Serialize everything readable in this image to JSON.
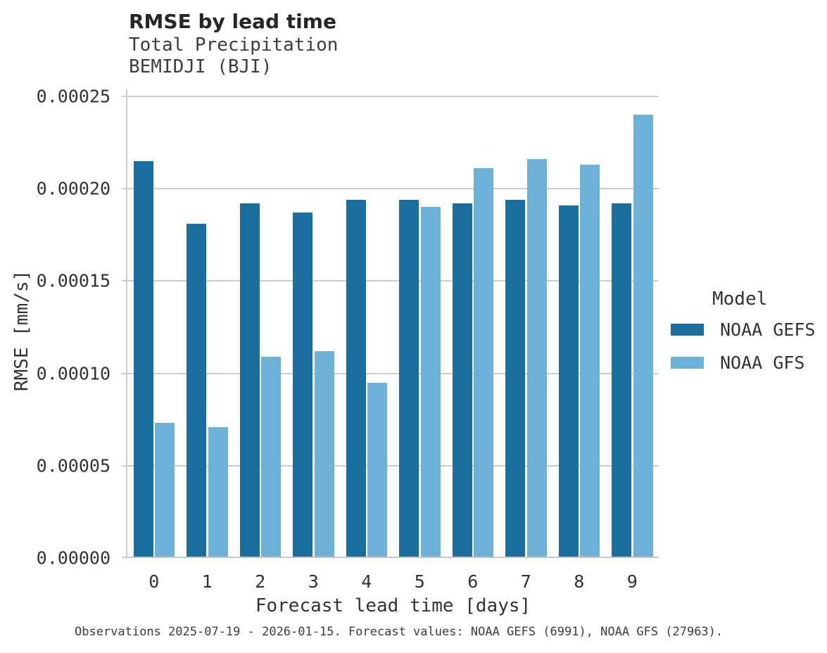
{
  "header": {
    "title": "RMSE by lead time",
    "subtitle_variable": "Total Precipitation",
    "subtitle_station": "BEMIDJI (BJI)"
  },
  "chart_data": {
    "type": "bar",
    "title": "RMSE by lead time",
    "subtitle": [
      "Total Precipitation",
      "BEMIDJI (BJI)"
    ],
    "categories": [
      "0",
      "1",
      "2",
      "3",
      "4",
      "5",
      "6",
      "7",
      "8",
      "9"
    ],
    "series": [
      {
        "name": "NOAA GEFS",
        "color": "#1b6f9f",
        "values": [
          0.000215,
          0.000181,
          0.000192,
          0.000187,
          0.000194,
          0.000194,
          0.000192,
          0.000194,
          0.000191,
          0.000192
        ]
      },
      {
        "name": "NOAA GFS",
        "color": "#6db1d8",
        "values": [
          7.3e-05,
          7.1e-05,
          0.000109,
          0.000112,
          9.5e-05,
          0.00019,
          0.000211,
          0.000216,
          0.000213,
          0.00024
        ]
      }
    ],
    "xlabel": "Forecast lead time [days]",
    "ylabel": "RMSE [mm/s]",
    "ylim": [
      0,
      0.00025
    ],
    "yticks": [
      0,
      5e-05,
      0.0001,
      0.00015,
      0.0002,
      0.00025
    ],
    "ytick_labels": [
      "0.00000",
      "0.00005",
      "0.00010",
      "0.00015",
      "0.00020",
      "0.00025"
    ],
    "grid": true,
    "legend_title": "Model",
    "legend_position": "right"
  },
  "legend": {
    "title": "Model",
    "items": [
      {
        "label": "NOAA GEFS",
        "color": "#1b6f9f"
      },
      {
        "label": "NOAA GFS",
        "color": "#6db1d8"
      }
    ]
  },
  "footer": {
    "caption": "Observations 2025-07-19 - 2026-01-15. Forecast values: NOAA GEFS (6991), NOAA GFS (27963)."
  }
}
